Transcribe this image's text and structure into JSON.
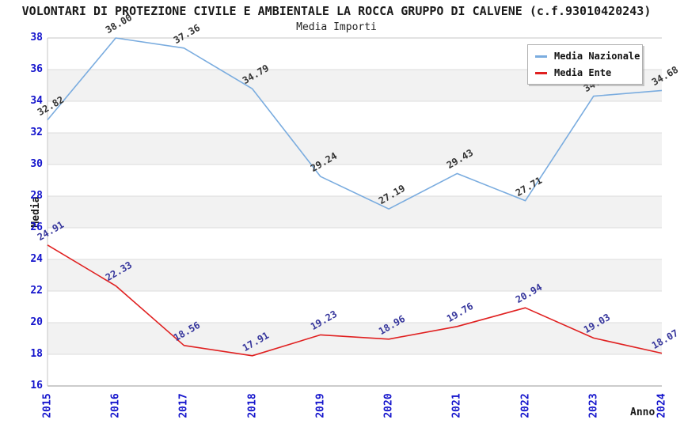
{
  "chart_data": {
    "type": "line",
    "title": "VOLONTARI DI PROTEZIONE CIVILE E AMBIENTALE LA ROCCA GRUPPO DI CALVENE (c.f.93010420243)",
    "subtitle": "Media Importi",
    "xlabel": "Anno",
    "ylabel": "Media",
    "x": [
      "2015",
      "2016",
      "2017",
      "2018",
      "2019",
      "2020",
      "2021",
      "2022",
      "2023",
      "2024"
    ],
    "series": [
      {
        "name": "Media Nazionale",
        "color": "#7aacdf",
        "label_color": "#333333",
        "values": [
          32.82,
          38.0,
          37.36,
          34.79,
          29.24,
          27.19,
          29.43,
          27.71,
          34.32,
          34.68
        ]
      },
      {
        "name": "Media Ente",
        "color": "#e02020",
        "label_color": "#34349b",
        "values": [
          24.91,
          22.33,
          18.56,
          17.91,
          19.23,
          18.96,
          19.76,
          20.94,
          19.03,
          18.07
        ]
      }
    ],
    "ylim": [
      16,
      38
    ],
    "ytick_step": 2,
    "yticks": [
      38,
      36,
      34,
      32,
      30,
      28,
      26,
      24,
      22,
      20,
      18,
      16
    ],
    "grid": true,
    "legend_position": "top-right",
    "band_color": "#f2f2f2",
    "gridline_color": "#dcdcdc",
    "frame_color": "#c4c4c4",
    "axis_color": "#999999",
    "tick_label_color": "#1414cc",
    "value_label_decimals": 2
  }
}
